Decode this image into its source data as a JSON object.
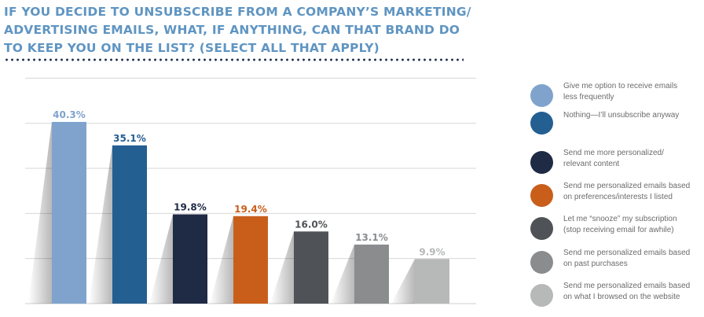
{
  "title": "IF YOU DECIDE TO UNSUBSCRIBE FROM A COMPANY’S MARKETING/ ADVERTISING EMAILS, WHAT, IF ANYTHING, CAN THAT BRAND DO TO KEEP YOU ON THE LIST? (SELECT ALL THAT APPLY)",
  "chart_data": {
    "type": "bar",
    "title": "IF YOU DECIDE TO UNSUBSCRIBE FROM A COMPANY’S MARKETING/ ADVERTISING EMAILS, WHAT, IF ANYTHING, CAN THAT BRAND DO TO KEEP YOU ON THE LIST? (SELECT ALL THAT APPLY)",
    "categories": [
      "Give me option to receive emails less frequently",
      "Nothing—I’ll unsubscribe anyway",
      "Send me more personalized/ relevant content",
      "Send me personalized emails based on preferences/interests I listed",
      "Let me “snooze” my subscription (stop receiving email for awhile)",
      "Send me personalized emails based on past purchases",
      "Send me personalized emails based on what I browsed on the website"
    ],
    "values": [
      40.3,
      35.1,
      19.8,
      19.4,
      16.0,
      13.1,
      9.9
    ],
    "value_labels": [
      "40.3%",
      "35.1%",
      "19.8%",
      "19.4%",
      "16.0%",
      "13.1%",
      "9.9%"
    ],
    "colors": [
      "#7fa3cc",
      "#245f92",
      "#1f2a45",
      "#c95e1b",
      "#4f5256",
      "#8a8c8e",
      "#b7b8b8"
    ],
    "label_colors": [
      "#7fa3cc",
      "#245f92",
      "#1f2a45",
      "#c95e1b",
      "#4f5256",
      "#8a8c8e",
      "#b7b8b8"
    ],
    "ylim": [
      0,
      50
    ],
    "grid": true,
    "legend_position": "right"
  },
  "legend": [
    {
      "line1": "Give me option to receive emails",
      "line2": "less frequently",
      "color": "#7fa3cc"
    },
    {
      "line1": "Nothing—I’ll unsubscribe anyway",
      "line2": "",
      "color": "#245f92"
    },
    {
      "line1": "Send me more personalized/",
      "line2": "relevant content",
      "color": "#1f2a45"
    },
    {
      "line1": "Send me personalized emails based",
      "line2": "on preferences/interests I listed",
      "color": "#c95e1b"
    },
    {
      "line1": "Let me “snooze” my subscription",
      "line2": "(stop receiving email for awhile)",
      "color": "#4f5256"
    },
    {
      "line1": "Send me personalized emails based",
      "line2": "on past purchases",
      "color": "#8a8c8e"
    },
    {
      "line1": "Send me personalized emails based",
      "line2": "on what I browsed on the website",
      "color": "#b7b8b8"
    }
  ]
}
